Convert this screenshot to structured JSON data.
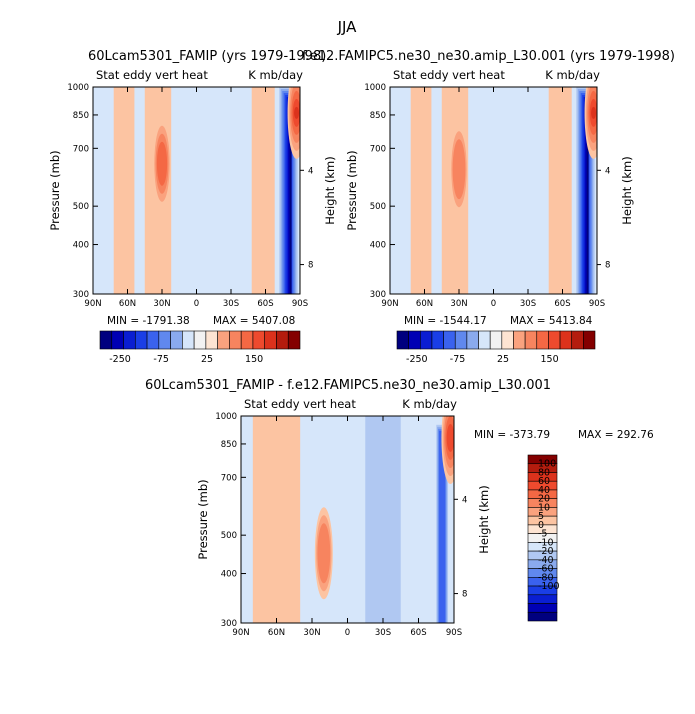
{
  "figure": {
    "season": "JJA",
    "panel_a_title": "60Lcam5301_FAMIP (yrs 1979-1998)",
    "panel_b_title": "f.e12.FAMIPC5.ne30_ne30.amip_L30.001 (yrs 1979-1998)",
    "diff_title": "60Lcam5301_FAMIP - f.e12.FAMIPC5.ne30_ne30.amip_L30.001"
  },
  "colors": {
    "blues": [
      "#00007f",
      "#0000b4",
      "#0a1ed2",
      "#1a3ee6",
      "#3a62ee",
      "#6088ee",
      "#8aaaee",
      "#b0c8f2"
    ],
    "light_blue": "#d6e6fa",
    "white": "#f2f2f2",
    "light_red": "#fde4d2",
    "reds": [
      "#fcc4a2",
      "#faa27e",
      "#f7845f",
      "#f46844",
      "#ee4a2e",
      "#dc321c",
      "#b41c0e",
      "#840000"
    ]
  },
  "chart_data": [
    {
      "type": "heatmap",
      "title": "Stat eddy vert heat",
      "units": "K mb/day",
      "xlabel": "",
      "ylabel": "Pressure (mb)",
      "ylabel_right": "Height (km)",
      "xlim": [
        90,
        -90
      ],
      "ylim": [
        1000,
        300
      ],
      "x_ticks": [
        {
          "v": 90,
          "label": "90N"
        },
        {
          "v": 60,
          "label": "60N"
        },
        {
          "v": 30,
          "label": "30N"
        },
        {
          "v": 0,
          "label": "0"
        },
        {
          "v": -30,
          "label": "30S"
        },
        {
          "v": -60,
          "label": "60S"
        },
        {
          "v": -90,
          "label": "90S"
        }
      ],
      "y_ticks": [
        300,
        400,
        500,
        700,
        850,
        1000
      ],
      "height_ticks": [
        {
          "km": 8,
          "p": 356
        },
        {
          "km": 4,
          "p": 616
        }
      ],
      "stats": {
        "min_label": "MIN = ",
        "min": "-1791.38",
        "max_label": "MAX = ",
        "max": "5407.08"
      },
      "colorbar": {
        "orientation": "horizontal",
        "labels": [
          "-250",
          "-75",
          "25",
          "150"
        ]
      },
      "features": [
        {
          "kind": "band",
          "sign": "positive",
          "lat_range": [
            72,
            54
          ],
          "p_range": [
            300,
            1000
          ],
          "level": 1
        },
        {
          "kind": "band",
          "sign": "positive",
          "lat_range": [
            45,
            22
          ],
          "p_range": [
            300,
            1000
          ],
          "level": 1
        },
        {
          "kind": "maximum",
          "sign": "positive",
          "lat": 30,
          "p": 640,
          "level": 4
        },
        {
          "kind": "band",
          "sign": "positive",
          "lat_range": [
            -48,
            -68
          ],
          "p_range": [
            300,
            1000
          ],
          "level": 1
        },
        {
          "kind": "minimum",
          "sign": "negative",
          "lat_range": [
            -72,
            -88
          ],
          "p_range": [
            300,
            1000
          ],
          "level": 8
        },
        {
          "kind": "maximum",
          "sign": "positive",
          "lat": -87,
          "p": 860,
          "level": 6
        }
      ]
    },
    {
      "type": "heatmap",
      "title": "Stat eddy vert heat",
      "units": "K mb/day",
      "xlabel": "",
      "ylabel": "Pressure (mb)",
      "ylabel_right": "Height (km)",
      "xlim": [
        90,
        -90
      ],
      "ylim": [
        1000,
        300
      ],
      "x_ticks": [
        {
          "v": 90,
          "label": "90N"
        },
        {
          "v": 60,
          "label": "60N"
        },
        {
          "v": 30,
          "label": "30N"
        },
        {
          "v": 0,
          "label": "0"
        },
        {
          "v": -30,
          "label": "30S"
        },
        {
          "v": -60,
          "label": "60S"
        },
        {
          "v": -90,
          "label": "90S"
        }
      ],
      "y_ticks": [
        300,
        400,
        500,
        700,
        850,
        1000
      ],
      "height_ticks": [
        {
          "km": 8,
          "p": 356
        },
        {
          "km": 4,
          "p": 616
        }
      ],
      "stats": {
        "min_label": "MIN = ",
        "min": "-1544.17",
        "max_label": "MAX = ",
        "max": "5413.84"
      },
      "colorbar": {
        "orientation": "horizontal",
        "labels": [
          "-250",
          "-75",
          "25",
          "150"
        ]
      },
      "features": [
        {
          "kind": "band",
          "sign": "positive",
          "lat_range": [
            72,
            54
          ],
          "p_range": [
            300,
            1000
          ],
          "level": 1
        },
        {
          "kind": "band",
          "sign": "positive",
          "lat_range": [
            45,
            22
          ],
          "p_range": [
            300,
            1000
          ],
          "level": 1
        },
        {
          "kind": "maximum",
          "sign": "positive",
          "lat": 30,
          "p": 620,
          "level": 3
        },
        {
          "kind": "band",
          "sign": "positive",
          "lat_range": [
            -48,
            -68
          ],
          "p_range": [
            300,
            1000
          ],
          "level": 1
        },
        {
          "kind": "minimum",
          "sign": "negative",
          "lat_range": [
            -72,
            -88
          ],
          "p_range": [
            300,
            1000
          ],
          "level": 8
        },
        {
          "kind": "maximum",
          "sign": "positive",
          "lat": -87,
          "p": 860,
          "level": 6
        }
      ]
    },
    {
      "type": "heatmap",
      "title": "Stat eddy vert heat",
      "units": "K mb/day",
      "xlabel": "",
      "ylabel": "Pressure (mb)",
      "ylabel_right": "Height (km)",
      "xlim": [
        90,
        -90
      ],
      "ylim": [
        1000,
        300
      ],
      "x_ticks": [
        {
          "v": 90,
          "label": "90N"
        },
        {
          "v": 60,
          "label": "60N"
        },
        {
          "v": 30,
          "label": "30N"
        },
        {
          "v": 0,
          "label": "0"
        },
        {
          "v": -30,
          "label": "30S"
        },
        {
          "v": -60,
          "label": "60S"
        },
        {
          "v": -90,
          "label": "90S"
        }
      ],
      "y_ticks": [
        300,
        400,
        500,
        700,
        850,
        1000
      ],
      "height_ticks": [
        {
          "km": 8,
          "p": 356
        },
        {
          "km": 4,
          "p": 616
        }
      ],
      "stats": {
        "min_label": "MIN = ",
        "min": "-373.79",
        "max_label": "MAX = ",
        "max": "292.76"
      },
      "colorbar": {
        "orientation": "vertical",
        "labels": [
          "100",
          "80",
          "60",
          "40",
          "20",
          "10",
          "5",
          "0",
          "-5",
          "-10",
          "-20",
          "-40",
          "-60",
          "-80",
          "-100"
        ]
      },
      "features": [
        {
          "kind": "band",
          "sign": "positive",
          "lat_range": [
            80,
            40
          ],
          "p_range": [
            300,
            1000
          ],
          "level": 1
        },
        {
          "kind": "maximum",
          "sign": "positive",
          "lat": 20,
          "p": 450,
          "level": 3
        },
        {
          "kind": "band",
          "sign": "negative",
          "lat_range": [
            -15,
            -45
          ],
          "p_range": [
            300,
            1000
          ],
          "level": 1
        },
        {
          "kind": "minimum",
          "sign": "negative",
          "lat_range": [
            -75,
            -85
          ],
          "p_range": [
            300,
            950
          ],
          "level": 4
        },
        {
          "kind": "maximum",
          "sign": "positive",
          "lat": -87,
          "p": 880,
          "level": 5
        }
      ]
    }
  ]
}
